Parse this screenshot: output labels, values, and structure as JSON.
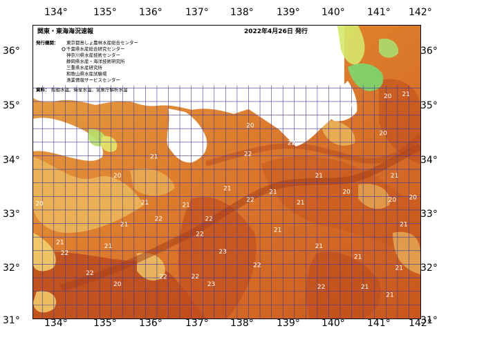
{
  "map": {
    "title": "関東・東海海況速報",
    "issued": "2022年4月26日 発行",
    "issuers_label": "発行機関：",
    "issuers": [
      "東京都島しょ農林水産総合センター",
      "千葉県水産総合研究センター",
      "神奈川県水産技術センター",
      "静岡県水産・海洋技術研究所",
      "三重県水産研究所",
      "和歌山県水産試験場",
      "漁業情報サービスセンター"
    ],
    "source_label": "資料：",
    "source": "船舶水温、衛星水温、気象庁解析水温",
    "longitude_ticks": [
      "134°",
      "135°",
      "136°",
      "137°",
      "138°",
      "139°",
      "140°",
      "141°",
      "142°"
    ],
    "latitude_ticks": [
      "36°",
      "35°",
      "34°",
      "33°",
      "32°",
      "31°"
    ],
    "sea_temperature_labels": [
      {
        "text": "20",
        "lon": 133.6,
        "lat": 33.08
      },
      {
        "text": "21",
        "lon": 134.05,
        "lat": 32.37
      },
      {
        "text": "22",
        "lon": 134.15,
        "lat": 32.17
      },
      {
        "text": "22",
        "lon": 134.7,
        "lat": 31.8
      },
      {
        "text": "21",
        "lon": 135.1,
        "lat": 32.3
      },
      {
        "text": "20",
        "lon": 135.3,
        "lat": 33.6
      },
      {
        "text": "21",
        "lon": 135.45,
        "lat": 32.7
      },
      {
        "text": "20",
        "lon": 135.3,
        "lat": 31.6
      },
      {
        "text": "21",
        "lon": 135.9,
        "lat": 33.1
      },
      {
        "text": "22",
        "lon": 136.2,
        "lat": 32.8
      },
      {
        "text": "22",
        "lon": 136.3,
        "lat": 31.73
      },
      {
        "text": "21",
        "lon": 136.1,
        "lat": 33.95
      },
      {
        "text": "21",
        "lon": 136.8,
        "lat": 33.06
      },
      {
        "text": "22",
        "lon": 137.1,
        "lat": 32.52
      },
      {
        "text": "22",
        "lon": 137.3,
        "lat": 32.8
      },
      {
        "text": "23",
        "lon": 137.6,
        "lat": 32.2
      },
      {
        "text": "23",
        "lon": 137.35,
        "lat": 31.6
      },
      {
        "text": "22",
        "lon": 137.0,
        "lat": 31.74
      },
      {
        "text": "21",
        "lon": 137.7,
        "lat": 33.36
      },
      {
        "text": "22",
        "lon": 138.15,
        "lat": 34.0
      },
      {
        "text": "20",
        "lon": 138.2,
        "lat": 34.52
      },
      {
        "text": "22",
        "lon": 138.2,
        "lat": 33.15
      },
      {
        "text": "21",
        "lon": 138.7,
        "lat": 33.3
      },
      {
        "text": "21",
        "lon": 138.8,
        "lat": 32.6
      },
      {
        "text": "22",
        "lon": 138.35,
        "lat": 31.95
      },
      {
        "text": "22",
        "lon": 139.1,
        "lat": 34.2
      },
      {
        "text": "21",
        "lon": 139.4,
        "lat": 34.5
      },
      {
        "text": "21",
        "lon": 139.7,
        "lat": 33.6
      },
      {
        "text": "21",
        "lon": 139.3,
        "lat": 33.1
      },
      {
        "text": "21",
        "lon": 139.7,
        "lat": 32.3
      },
      {
        "text": "22",
        "lon": 139.75,
        "lat": 31.55
      },
      {
        "text": "20",
        "lon": 140.4,
        "lat": 34.9
      },
      {
        "text": "20",
        "lon": 140.3,
        "lat": 33.3
      },
      {
        "text": "21",
        "lon": 140.55,
        "lat": 32.1
      },
      {
        "text": "21",
        "lon": 140.7,
        "lat": 31.55
      },
      {
        "text": "20",
        "lon": 141.1,
        "lat": 34.38
      },
      {
        "text": "21",
        "lon": 141.35,
        "lat": 33.6
      },
      {
        "text": "20",
        "lon": 141.3,
        "lat": 33.15
      },
      {
        "text": "21",
        "lon": 141.45,
        "lat": 31.9
      },
      {
        "text": "20",
        "lon": 141.2,
        "lat": 35.06
      },
      {
        "text": "21",
        "lon": 141.6,
        "lat": 35.1
      },
      {
        "text": "20",
        "lon": 141.75,
        "lat": 33.2
      },
      {
        "text": "21",
        "lon": 141.55,
        "lat": 32.7
      },
      {
        "text": "21",
        "lon": 141.25,
        "lat": 31.4
      }
    ]
  }
}
